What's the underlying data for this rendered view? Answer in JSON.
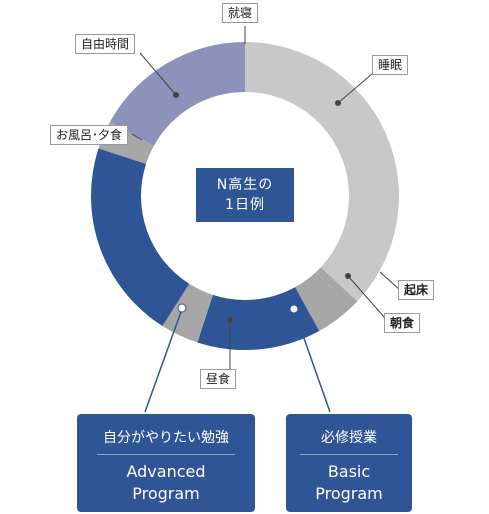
{
  "center": {
    "line1": "N高生の",
    "line2": "1日例"
  },
  "labels": {
    "shushin": "就寝",
    "suimin": "睡眠",
    "kisho": "起床",
    "choshoku": "朝食",
    "chushoku": "昼食",
    "ofuro_yushoku": "お風呂･夕食",
    "jiyu_jikan": "自由時間"
  },
  "boxes": {
    "advanced": {
      "jp": "自分がやりたい勉強",
      "en1": "Advanced",
      "en2": "Program"
    },
    "basic": {
      "jp": "必修授業",
      "en1": "Basic",
      "en2": "Program"
    }
  },
  "chart_data": {
    "type": "pie",
    "segments": [
      {
        "key": "suimin",
        "value": 37,
        "color": "#c8c8c8"
      },
      {
        "key": "kisho",
        "value": 1,
        "color": "#a6a6a6"
      },
      {
        "key": "choshoku",
        "value": 4,
        "color": "#a6a6a6"
      },
      {
        "key": "basic",
        "value": 13,
        "color": "#2f5597"
      },
      {
        "key": "chushoku",
        "value": 4,
        "color": "#a6a6a6"
      },
      {
        "key": "advanced",
        "value": 21,
        "color": "#2f5597"
      },
      {
        "key": "ofuro_yushoku",
        "value": 3,
        "color": "#a6a6a6"
      },
      {
        "key": "jiyu_jikan",
        "value": 17,
        "color": "#8d92bb"
      }
    ]
  }
}
